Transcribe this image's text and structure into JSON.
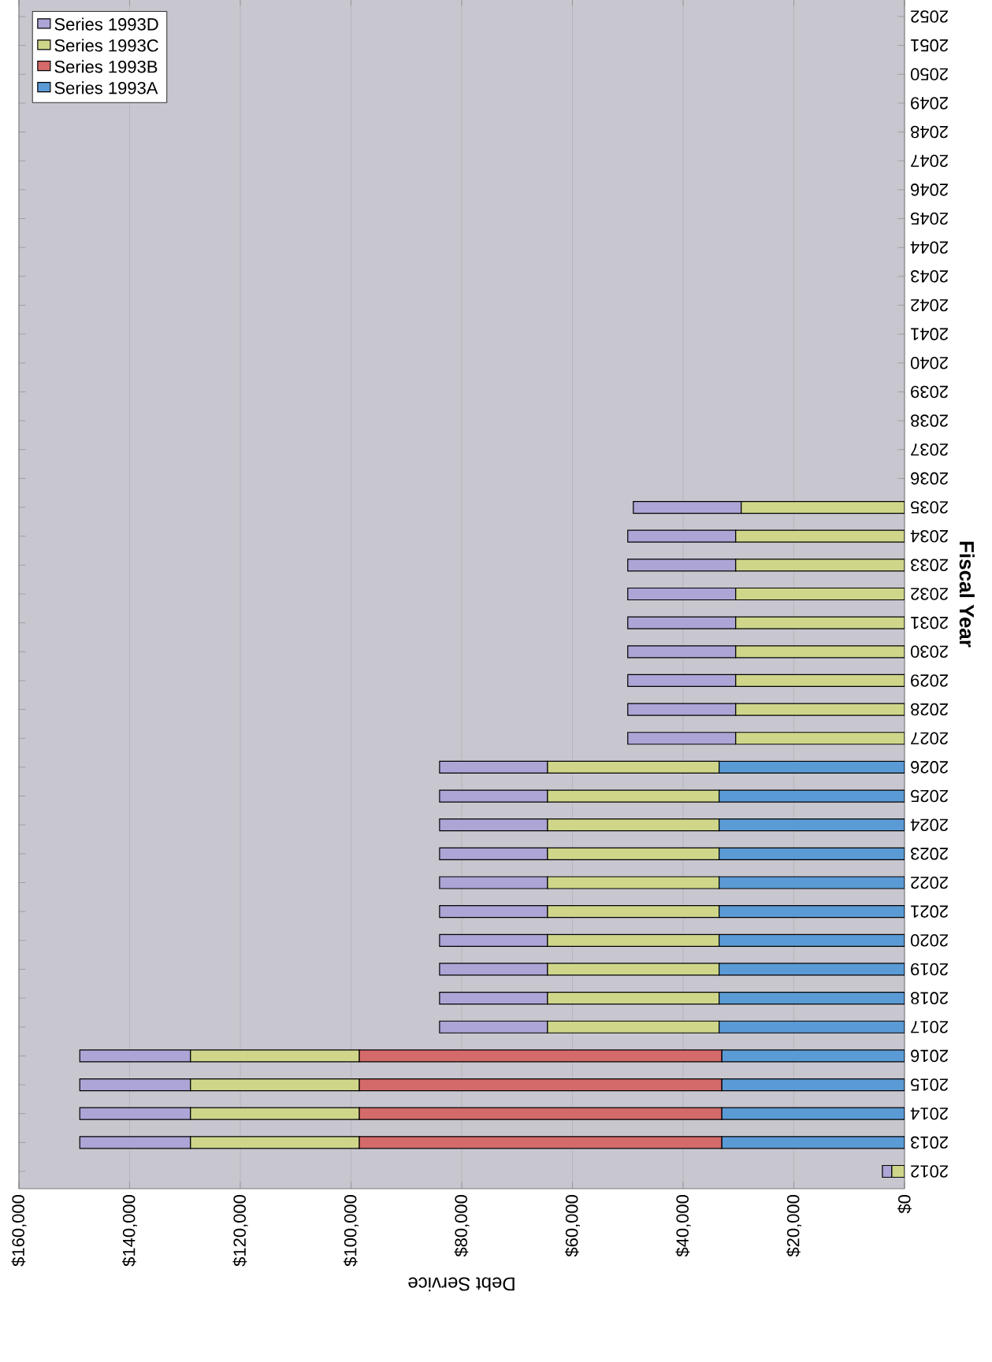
{
  "chart_data": {
    "type": "bar",
    "orientation": "horizontal",
    "stacked": true,
    "xlabel": "Debt Service",
    "ylabel": "Fiscal Year",
    "categories": [
      "2052",
      "2051",
      "2050",
      "2049",
      "2048",
      "2047",
      "2046",
      "2045",
      "2044",
      "2043",
      "2042",
      "2041",
      "2040",
      "2039",
      "2038",
      "2037",
      "2036",
      "2035",
      "2034",
      "2033",
      "2032",
      "2031",
      "2030",
      "2029",
      "2028",
      "2027",
      "2026",
      "2025",
      "2024",
      "2023",
      "2022",
      "2021",
      "2020",
      "2019",
      "2018",
      "2017",
      "2016",
      "2015",
      "2014",
      "2013",
      "2012"
    ],
    "series": [
      {
        "name": "Series 1993A",
        "color": "#5b9bd5",
        "values": [
          null,
          null,
          null,
          null,
          null,
          null,
          null,
          null,
          null,
          null,
          null,
          null,
          null,
          null,
          null,
          null,
          null,
          null,
          null,
          null,
          null,
          null,
          null,
          null,
          null,
          null,
          33500,
          33500,
          33500,
          33500,
          33500,
          33500,
          33500,
          33500,
          33500,
          33500,
          33000,
          33000,
          33000,
          33000,
          null
        ]
      },
      {
        "name": "Series 1993B",
        "color": "#d46a6a",
        "values": [
          null,
          null,
          null,
          null,
          null,
          null,
          null,
          null,
          null,
          null,
          null,
          null,
          null,
          null,
          null,
          null,
          null,
          null,
          null,
          null,
          null,
          null,
          null,
          null,
          null,
          null,
          null,
          null,
          null,
          null,
          null,
          null,
          null,
          null,
          null,
          null,
          65500,
          65500,
          65500,
          65500,
          null
        ]
      },
      {
        "name": "Series 1993C",
        "color": "#cfd68a",
        "values": [
          null,
          null,
          null,
          null,
          null,
          null,
          null,
          null,
          null,
          null,
          null,
          null,
          null,
          null,
          null,
          null,
          null,
          29500,
          30500,
          30500,
          30500,
          30500,
          30500,
          30500,
          30500,
          30500,
          31000,
          31000,
          31000,
          31000,
          31000,
          31000,
          31000,
          31000,
          31000,
          31000,
          30500,
          30500,
          30500,
          30500,
          2300
        ]
      },
      {
        "name": "Series 1993D",
        "color": "#aca5d6",
        "values": [
          null,
          null,
          null,
          null,
          null,
          null,
          null,
          null,
          null,
          null,
          null,
          null,
          null,
          null,
          null,
          null,
          null,
          19500,
          19500,
          19500,
          19500,
          19500,
          19500,
          19500,
          19500,
          19500,
          19500,
          19500,
          19500,
          19500,
          19500,
          19500,
          19500,
          19500,
          19500,
          19500,
          20000,
          20000,
          20000,
          20000,
          1700
        ]
      }
    ],
    "xlim": [
      160000,
      0
    ],
    "xticks": [
      {
        "value": 0,
        "label": "$0"
      },
      {
        "value": 20000,
        "label": "$20,000"
      },
      {
        "value": 40000,
        "label": "$40,000"
      },
      {
        "value": 60000,
        "label": "$60,000"
      },
      {
        "value": 80000,
        "label": "$80,000"
      },
      {
        "value": 100000,
        "label": "$100,000"
      },
      {
        "value": 120000,
        "label": "$120,000"
      },
      {
        "value": 140000,
        "label": "$140,000"
      },
      {
        "value": 160000,
        "label": "$160,000"
      }
    ],
    "grid": "x",
    "legend": "top left"
  }
}
